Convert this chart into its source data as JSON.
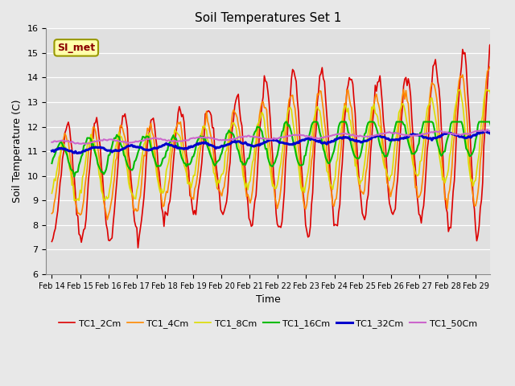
{
  "title": "Soil Temperatures Set 1",
  "xlabel": "Time",
  "ylabel": "Soil Temperature (C)",
  "ylim": [
    6.0,
    16.0
  ],
  "yticks": [
    6.0,
    7.0,
    8.0,
    9.0,
    10.0,
    11.0,
    12.0,
    13.0,
    14.0,
    15.0,
    16.0
  ],
  "x_labels": [
    "Feb 14",
    "Feb 15",
    "Feb 16",
    "Feb 17",
    "Feb 18",
    "Feb 19",
    "Feb 20",
    "Feb 21",
    "Feb 22",
    "Feb 23",
    "Feb 24",
    "Feb 25",
    "Feb 26",
    "Feb 27",
    "Feb 28",
    "Feb 29"
  ],
  "series_order": [
    "TC1_2Cm",
    "TC1_4Cm",
    "TC1_8Cm",
    "TC1_16Cm",
    "TC1_32Cm",
    "TC1_50Cm"
  ],
  "colors": {
    "TC1_2Cm": "#dd0000",
    "TC1_4Cm": "#ff8800",
    "TC1_8Cm": "#dddd00",
    "TC1_16Cm": "#00bb00",
    "TC1_32Cm": "#0000cc",
    "TC1_50Cm": "#cc66cc"
  },
  "linewidths": {
    "TC1_2Cm": 1.2,
    "TC1_4Cm": 1.2,
    "TC1_8Cm": 1.2,
    "TC1_16Cm": 1.5,
    "TC1_32Cm": 2.2,
    "TC1_50Cm": 1.5
  },
  "annotation_text": "SI_met",
  "bg_color": "#e8e8e8",
  "plot_bg_color": "#e0e0e0",
  "grid_color": "#ffffff",
  "title_fontsize": 11,
  "axis_fontsize": 9,
  "tick_fontsize": 8
}
